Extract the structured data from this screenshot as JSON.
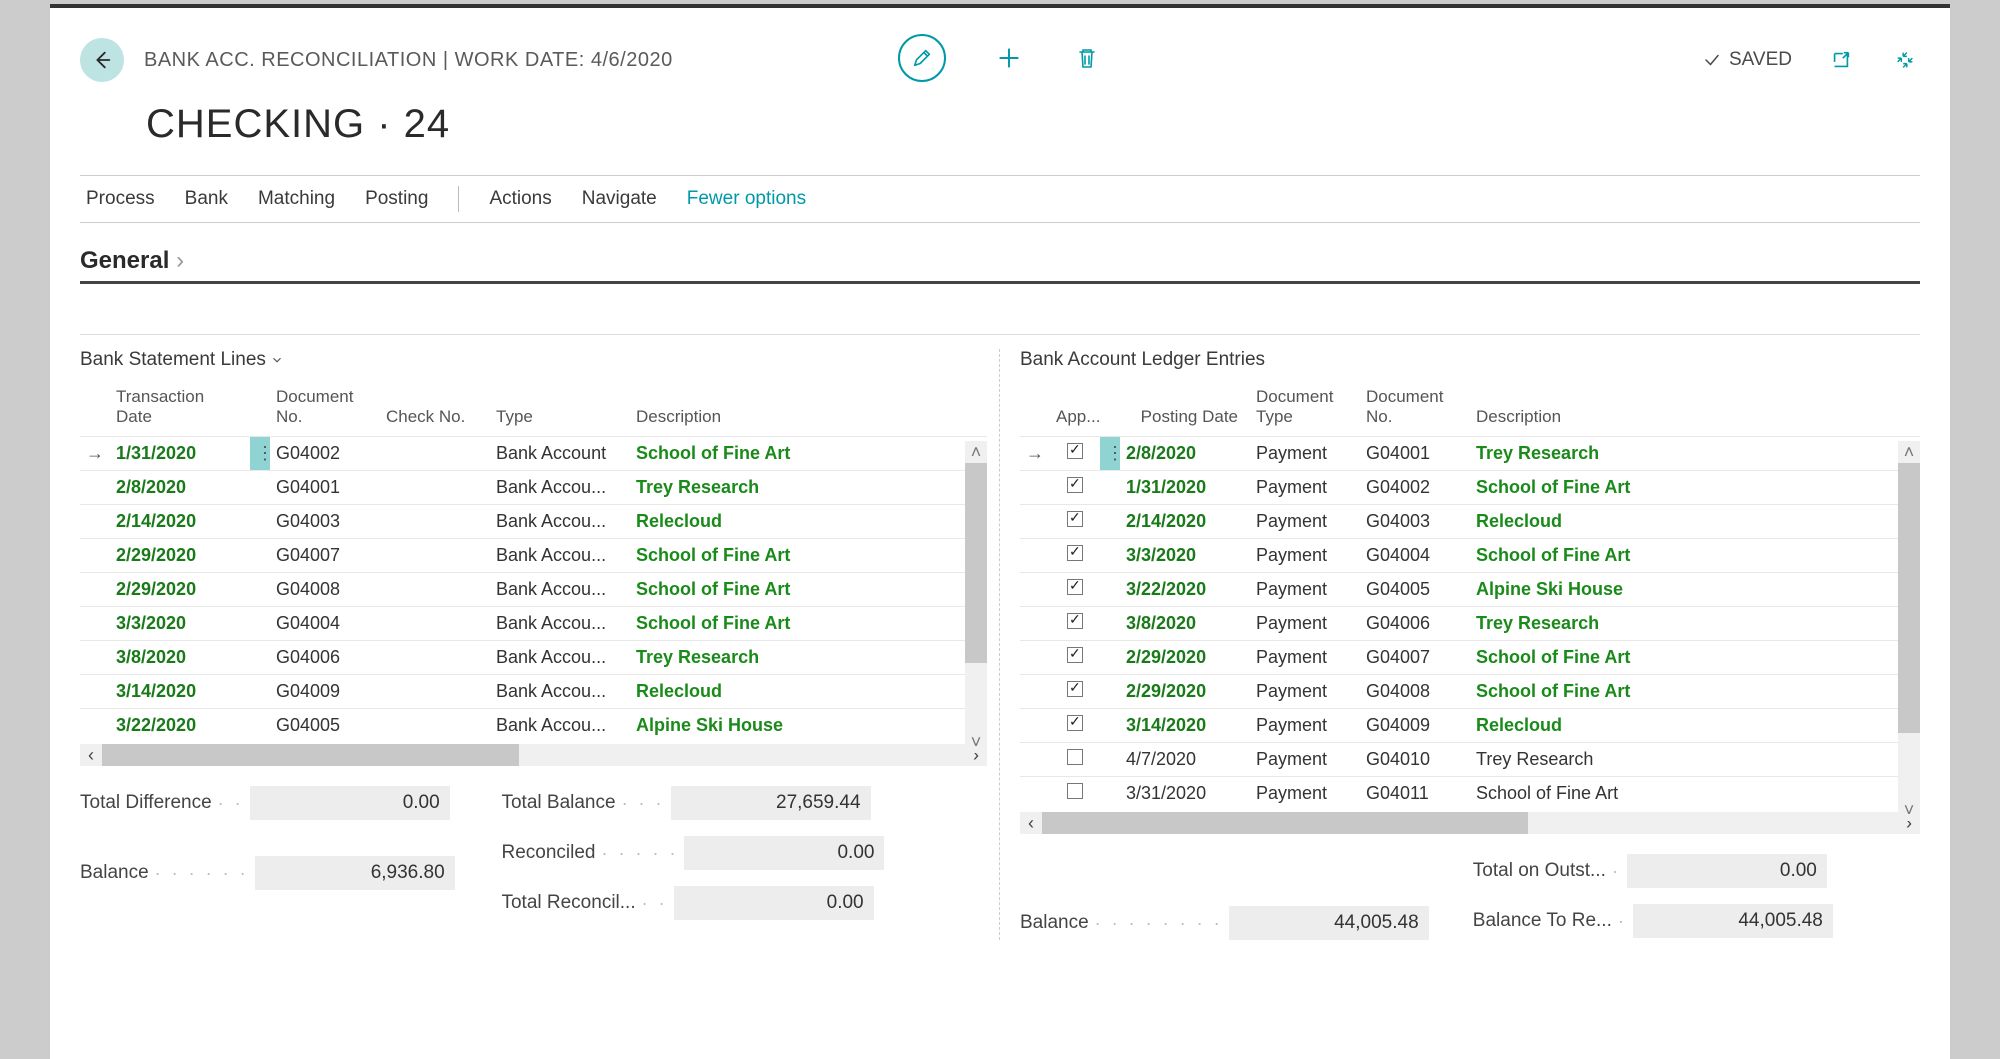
{
  "breadcrumb": "BANK ACC. RECONCILIATION | WORK DATE: 4/6/2020",
  "saved_label": "SAVED",
  "page_title": "CHECKING · 24",
  "menu": {
    "process": "Process",
    "bank": "Bank",
    "matching": "Matching",
    "posting": "Posting",
    "actions": "Actions",
    "navigate": "Navigate",
    "fewer": "Fewer options"
  },
  "general_label": "General",
  "left": {
    "title": "Bank Statement Lines",
    "headers": {
      "trans_date": "Transaction\nDate",
      "doc_no": "Document\nNo.",
      "check_no": "Check No.",
      "type": "Type",
      "description": "Description"
    },
    "rows": [
      {
        "date": "1/31/2020",
        "doc": "G04002",
        "type": "Bank Account",
        "desc": "School of Fine Art",
        "matched": true,
        "selected": true
      },
      {
        "date": "2/8/2020",
        "doc": "G04001",
        "type": "Bank Accou...",
        "desc": "Trey Research",
        "matched": true
      },
      {
        "date": "2/14/2020",
        "doc": "G04003",
        "type": "Bank Accou...",
        "desc": "Relecloud",
        "matched": true
      },
      {
        "date": "2/29/2020",
        "doc": "G04007",
        "type": "Bank Accou...",
        "desc": "School of Fine Art",
        "matched": true
      },
      {
        "date": "2/29/2020",
        "doc": "G04008",
        "type": "Bank Accou...",
        "desc": "School of Fine Art",
        "matched": true
      },
      {
        "date": "3/3/2020",
        "doc": "G04004",
        "type": "Bank Accou...",
        "desc": "School of Fine Art",
        "matched": true
      },
      {
        "date": "3/8/2020",
        "doc": "G04006",
        "type": "Bank Accou...",
        "desc": "Trey Research",
        "matched": true
      },
      {
        "date": "3/14/2020",
        "doc": "G04009",
        "type": "Bank Accou...",
        "desc": "Relecloud",
        "matched": true
      },
      {
        "date": "3/22/2020",
        "doc": "G04005",
        "type": "Bank Accou...",
        "desc": "Alpine Ski House",
        "matched": true
      }
    ]
  },
  "right": {
    "title": "Bank Account Ledger Entries",
    "headers": {
      "app": "App...",
      "posting_date": "Posting Date",
      "doc_type": "Document\nType",
      "doc_no": "Document\nNo.",
      "description": "Description"
    },
    "rows": [
      {
        "app": true,
        "date": "2/8/2020",
        "dtype": "Payment",
        "doc": "G04001",
        "desc": "Trey Research",
        "matched": true,
        "selected": true
      },
      {
        "app": true,
        "date": "1/31/2020",
        "dtype": "Payment",
        "doc": "G04002",
        "desc": "School of Fine Art",
        "matched": true
      },
      {
        "app": true,
        "date": "2/14/2020",
        "dtype": "Payment",
        "doc": "G04003",
        "desc": "Relecloud",
        "matched": true
      },
      {
        "app": true,
        "date": "3/3/2020",
        "dtype": "Payment",
        "doc": "G04004",
        "desc": "School of Fine Art",
        "matched": true
      },
      {
        "app": true,
        "date": "3/22/2020",
        "dtype": "Payment",
        "doc": "G04005",
        "desc": "Alpine Ski House",
        "matched": true
      },
      {
        "app": true,
        "date": "3/8/2020",
        "dtype": "Payment",
        "doc": "G04006",
        "desc": "Trey Research",
        "matched": true
      },
      {
        "app": true,
        "date": "2/29/2020",
        "dtype": "Payment",
        "doc": "G04007",
        "desc": "School of Fine Art",
        "matched": true
      },
      {
        "app": true,
        "date": "2/29/2020",
        "dtype": "Payment",
        "doc": "G04008",
        "desc": "School of Fine Art",
        "matched": true
      },
      {
        "app": true,
        "date": "3/14/2020",
        "dtype": "Payment",
        "doc": "G04009",
        "desc": "Relecloud",
        "matched": true
      },
      {
        "app": false,
        "date": "4/7/2020",
        "dtype": "Payment",
        "doc": "G04010",
        "desc": "Trey Research",
        "matched": false
      },
      {
        "app": false,
        "date": "3/31/2020",
        "dtype": "Payment",
        "doc": "G04011",
        "desc": "School of Fine Art",
        "matched": false
      }
    ]
  },
  "totals": {
    "left": {
      "total_diff_label": "Total Difference",
      "total_diff": "0.00",
      "balance_label": "Balance",
      "balance": "6,936.80",
      "total_balance_label": "Total Balance",
      "total_balance": "27,659.44",
      "reconciled_label": "Reconciled",
      "reconciled": "0.00",
      "total_reconcil_label": "Total Reconcil...",
      "total_reconcil": "0.00"
    },
    "right": {
      "balance_label": "Balance",
      "balance": "44,005.48",
      "total_outst_label": "Total on Outst...",
      "total_outst": "0.00",
      "balance_to_re_label": "Balance To Re...",
      "balance_to_re": "44,005.48"
    }
  },
  "colors": {
    "teal": "#0099a8",
    "matched_green": "#1a8a1a",
    "sel_bg": "#8fd3d3"
  }
}
